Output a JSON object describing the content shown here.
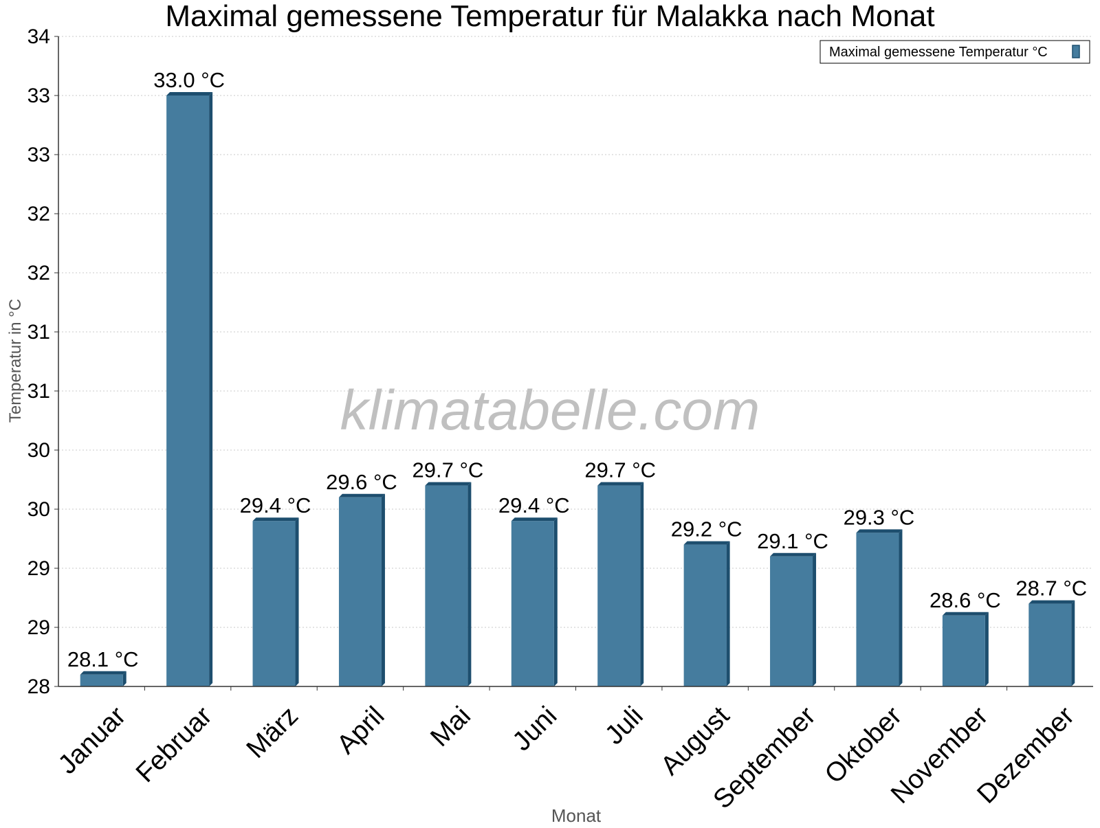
{
  "chart_data": {
    "type": "bar",
    "title": "Maximal gemessene Temperatur für Malakka nach Monat",
    "xlabel": "Monat",
    "ylabel": "Temperatur in °C",
    "categories": [
      "Januar",
      "Februar",
      "März",
      "April",
      "Mai",
      "Juni",
      "Juli",
      "August",
      "September",
      "Oktober",
      "November",
      "Dezember"
    ],
    "series": [
      {
        "name": "Maximal gemessene Temperatur °C",
        "values": [
          28.1,
          33.0,
          29.4,
          29.6,
          29.7,
          29.4,
          29.7,
          29.2,
          29.1,
          29.3,
          28.6,
          28.7
        ],
        "labels": [
          "28.1 °C",
          "33.0 °C",
          "29.4 °C",
          "29.6 °C",
          "29.7 °C",
          "29.4 °C",
          "29.7 °C",
          "29.2 °C",
          "29.1 °C",
          "29.3 °C",
          "28.6 °C",
          "28.7 °C"
        ]
      }
    ],
    "ylim": [
      28,
      33.5
    ],
    "yticks": [
      28,
      28.5,
      29,
      29.5,
      30,
      30.5,
      31,
      31.5,
      32,
      32.5,
      33,
      33.5
    ],
    "ytick_labels": [
      "28",
      "29",
      "29",
      "30",
      "30",
      "31",
      "31",
      "32",
      "32",
      "33",
      "33",
      "34"
    ],
    "grid": true,
    "legend_position": "top-right",
    "watermark": "klimatabelle.com",
    "colors": {
      "bar_front": "#457c9e",
      "bar_side": "#1d4e6e",
      "bar_top": "#1d4e6e",
      "grid": "#c8c8c8",
      "axis": "#333333",
      "axis_label": "#555555",
      "watermark": "#c0c0c0"
    }
  }
}
